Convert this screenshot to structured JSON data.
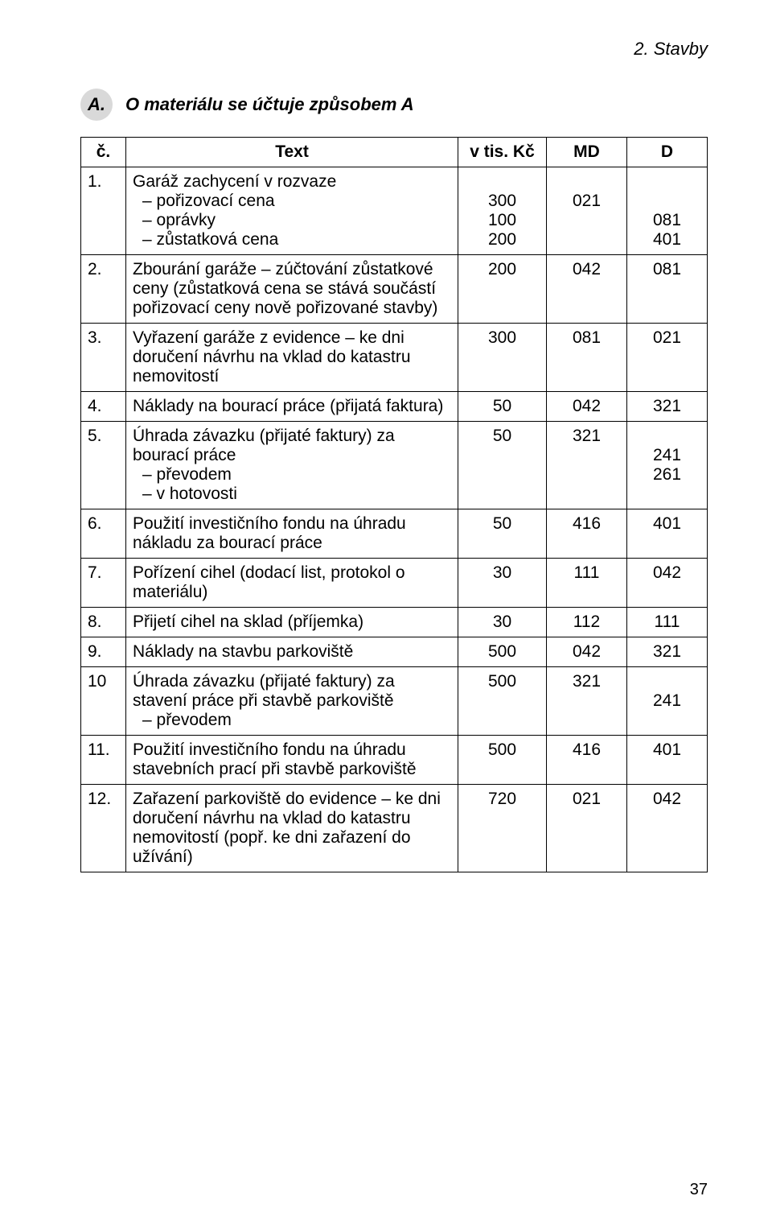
{
  "page": {
    "header": "2. Stavby",
    "badge": "A.",
    "section_title": "O materiálu se účtuje způsobem A",
    "page_number": "37"
  },
  "table": {
    "headers": {
      "num": "č.",
      "text": "Text",
      "kc": "v tis. Kč",
      "md": "MD",
      "d": "D"
    },
    "rows": [
      {
        "num": "1.",
        "text_lines": [
          "Garáž zachycení v rozvaze",
          "– pořizovací cena",
          "– oprávky",
          "– zůstatková cena"
        ],
        "kc_lines": [
          "",
          "300",
          "100",
          "200"
        ],
        "md_lines": [
          "",
          "021",
          "",
          ""
        ],
        "d_lines": [
          "",
          "",
          "081",
          "401"
        ]
      },
      {
        "num": "2.",
        "text_lines": [
          "Zbourání garáže – zúčtování zůstatkové ceny (zůstatková cena se stává součástí pořizovací ceny nově pořizované stavby)"
        ],
        "kc_lines": [
          "200"
        ],
        "md_lines": [
          "042"
        ],
        "d_lines": [
          "081"
        ]
      },
      {
        "num": "3.",
        "text_lines": [
          "Vyřazení garáže z evidence – ke dni doručení návrhu na vklad do katastru nemovitostí"
        ],
        "kc_lines": [
          "300"
        ],
        "md_lines": [
          "081"
        ],
        "d_lines": [
          "021"
        ]
      },
      {
        "num": "4.",
        "text_lines": [
          "Náklady na bourací práce (přijatá faktura)"
        ],
        "kc_lines": [
          "50"
        ],
        "md_lines": [
          "042"
        ],
        "d_lines": [
          "321"
        ]
      },
      {
        "num": "5.",
        "text_lines": [
          "Úhrada závazku (přijaté faktury) za bourací práce",
          "– převodem",
          "– v hotovosti"
        ],
        "kc_lines": [
          "50",
          "",
          ""
        ],
        "md_lines": [
          "321",
          "",
          ""
        ],
        "d_lines": [
          "",
          "241",
          "261"
        ]
      },
      {
        "num": "6.",
        "text_lines": [
          "Použití investičního fondu na úhradu nákladu za bourací práce"
        ],
        "kc_lines": [
          "50"
        ],
        "md_lines": [
          "416"
        ],
        "d_lines": [
          "401"
        ]
      },
      {
        "num": "7.",
        "text_lines": [
          "Pořízení cihel (dodací list, protokol o materiálu)"
        ],
        "kc_lines": [
          "30"
        ],
        "md_lines": [
          "111"
        ],
        "d_lines": [
          "042"
        ]
      },
      {
        "num": "8.",
        "text_lines": [
          "Přijetí cihel na sklad (příjemka)"
        ],
        "kc_lines": [
          "30"
        ],
        "md_lines": [
          "112"
        ],
        "d_lines": [
          "111"
        ]
      },
      {
        "num": "9.",
        "text_lines": [
          "Náklady na stavbu parkoviště"
        ],
        "kc_lines": [
          "500"
        ],
        "md_lines": [
          "042"
        ],
        "d_lines": [
          "321"
        ]
      },
      {
        "num": "10",
        "text_lines": [
          "Úhrada závazku (přijaté faktury) za stavení práce při stavbě parkoviště",
          "– převodem"
        ],
        "kc_lines": [
          "500",
          ""
        ],
        "md_lines": [
          "321",
          ""
        ],
        "d_lines": [
          "",
          "241"
        ]
      },
      {
        "num": "11.",
        "text_lines": [
          "Použití investičního fondu na úhradu stavebních prací při stavbě parkoviště"
        ],
        "kc_lines": [
          "500"
        ],
        "md_lines": [
          "416"
        ],
        "d_lines": [
          "401"
        ]
      },
      {
        "num": "12.",
        "text_lines": [
          "Zařazení parkoviště do evidence – ke dni doručení návrhu na vklad do katastru nemovitostí (popř. ke dni zařazení do užívání)"
        ],
        "kc_lines": [
          "720"
        ],
        "md_lines": [
          "021"
        ],
        "d_lines": [
          "042"
        ]
      }
    ]
  }
}
